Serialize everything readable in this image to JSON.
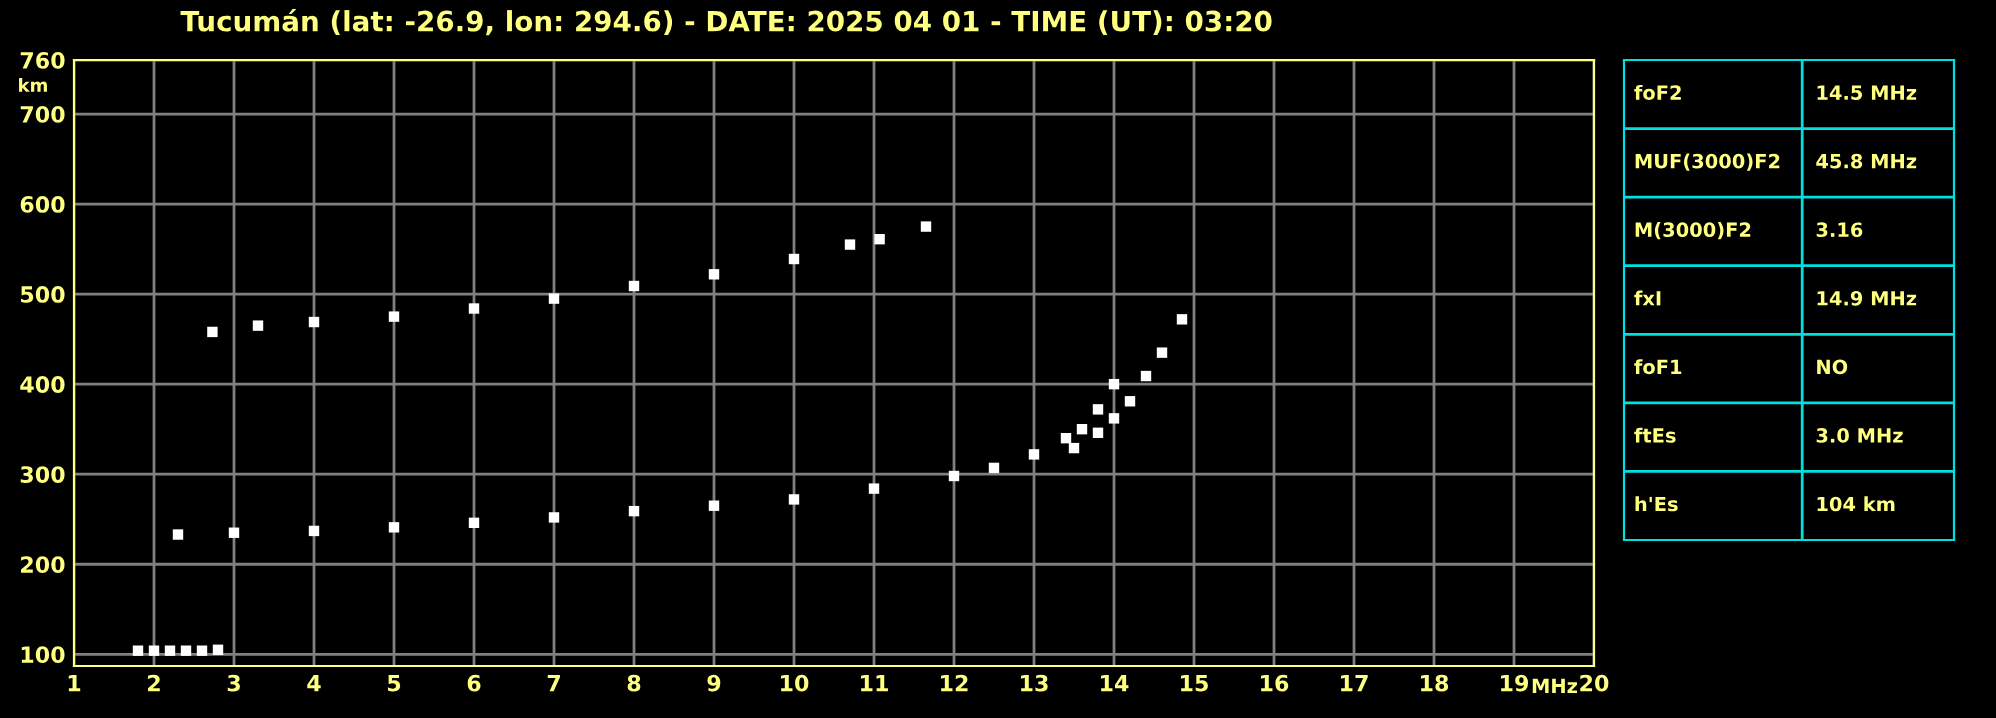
{
  "chart_data": [
    {
      "type": "scatter",
      "title": "Tucumán (lat: -26.9, lon: 294.6) - DATE: 2025 04 01 - TIME (UT): 03:20",
      "xlabel": "MHz",
      "ylabel": "km",
      "xlim": [
        1,
        20
      ],
      "ylim": [
        87,
        760
      ],
      "xticks": [
        1,
        2,
        3,
        4,
        5,
        6,
        7,
        8,
        9,
        10,
        11,
        12,
        13,
        14,
        15,
        16,
        17,
        18,
        19,
        20
      ],
      "yticks": [
        100,
        200,
        300,
        400,
        500,
        600,
        700,
        760
      ],
      "grid": true,
      "marker": "square",
      "series": [
        {
          "color": "#ffffff",
          "x": [
            1.8,
            2.0,
            2.2,
            2.4,
            2.6,
            2.8
          ],
          "values": [
            104,
            104,
            104,
            104,
            104,
            105
          ]
        },
        {
          "color": "#ffffff",
          "x": [
            2.3,
            3,
            4,
            5,
            6,
            7,
            8,
            9,
            10,
            11,
            12,
            12.5,
            13,
            13.4,
            13.6,
            13.8,
            14.0
          ],
          "values": [
            233,
            235,
            237,
            241,
            246,
            252,
            259,
            265,
            272,
            284,
            298,
            307,
            322,
            340,
            350,
            372,
            400
          ]
        },
        {
          "color": "#ffffff",
          "x": [
            13.5,
            13.8,
            14.0,
            14.2,
            14.4,
            14.6,
            14.85
          ],
          "values": [
            329,
            346,
            362,
            381,
            409,
            435,
            472
          ]
        },
        {
          "color": "#ffffff",
          "x": [
            2.73,
            3.3,
            4,
            5,
            6,
            7,
            8,
            9,
            10,
            10.7,
            11.07,
            11.65
          ],
          "values": [
            458,
            465,
            469,
            475,
            484,
            495,
            509,
            522,
            539,
            555,
            561,
            575
          ]
        }
      ]
    },
    {
      "type": "other",
      "annotations": [
        "foF2",
        "14.5 MHz",
        "MUF(3000)F2",
        "45.8 MHz",
        "M(3000)F2",
        "3.16",
        "fxI",
        "14.9 MHz",
        "foF1",
        "NO",
        "ftEs",
        "3.0 MHz",
        "h'Es",
        "104 km"
      ]
    }
  ]
}
